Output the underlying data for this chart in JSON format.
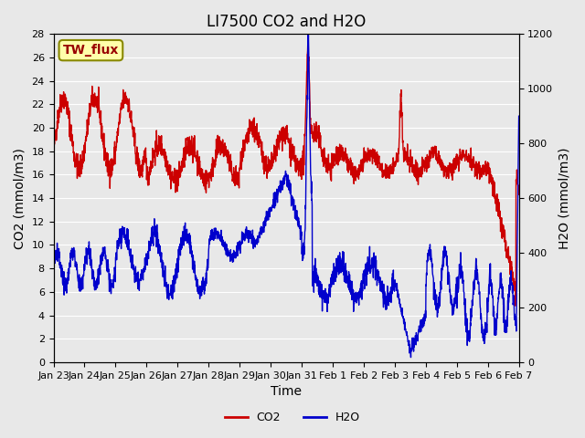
{
  "title": "LI7500 CO2 and H2O",
  "xlabel": "Time",
  "ylabel_left": "CO2 (mmol/m3)",
  "ylabel_right": "H2O (mmol/m3)",
  "ylim_left": [
    0,
    28
  ],
  "ylim_right": [
    0,
    1200
  ],
  "yticks_left": [
    0,
    2,
    4,
    6,
    8,
    10,
    12,
    14,
    16,
    18,
    20,
    22,
    24,
    26,
    28
  ],
  "yticks_right": [
    0,
    200,
    400,
    600,
    800,
    1000,
    1200
  ],
  "xtick_labels": [
    "Jan 23",
    "Jan 24",
    "Jan 25",
    "Jan 26",
    "Jan 27",
    "Jan 28",
    "Jan 29",
    "Jan 30",
    "Jan 31",
    "Feb 1",
    "Feb 2",
    "Feb 3",
    "Feb 4",
    "Feb 5",
    "Feb 6",
    "Feb 7"
  ],
  "co2_color": "#cc0000",
  "h2o_color": "#0000cc",
  "background_color": "#e8e8e8",
  "plot_bg_color": "#e8e8e8",
  "annotation_text": "TW_flux",
  "annotation_bg": "#ffffaa",
  "annotation_border": "#888800",
  "legend_co2": "CO2",
  "legend_h2o": "H2O",
  "line_width": 1.0,
  "title_fontsize": 12,
  "axis_label_fontsize": 10,
  "tick_fontsize": 8,
  "n_days": 15
}
